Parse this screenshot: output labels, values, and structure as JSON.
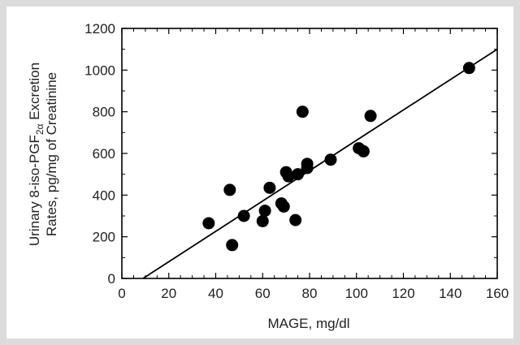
{
  "chart_data": {
    "type": "scatter",
    "xlabel": "MAGE, mg/dl",
    "ylabel_line1_parts": [
      "Urinary 8-iso-PGF",
      "2α",
      " Excretion"
    ],
    "ylabel_line2": "Rates, pg/mg of Creatinine",
    "xlim": [
      0,
      160
    ],
    "ylim": [
      0,
      1200
    ],
    "x_ticks": [
      0,
      20,
      40,
      60,
      80,
      100,
      120,
      140,
      160
    ],
    "y_ticks": [
      0,
      200,
      400,
      600,
      800,
      1000,
      1200
    ],
    "grid": false,
    "legend": "none",
    "points": [
      {
        "x": 37,
        "y": 265
      },
      {
        "x": 46,
        "y": 425
      },
      {
        "x": 47,
        "y": 160
      },
      {
        "x": 52,
        "y": 300
      },
      {
        "x": 60,
        "y": 275
      },
      {
        "x": 61,
        "y": 325
      },
      {
        "x": 63,
        "y": 435
      },
      {
        "x": 68,
        "y": 360
      },
      {
        "x": 69,
        "y": 345
      },
      {
        "x": 70,
        "y": 510
      },
      {
        "x": 71,
        "y": 490
      },
      {
        "x": 74,
        "y": 280
      },
      {
        "x": 75,
        "y": 500
      },
      {
        "x": 77,
        "y": 800
      },
      {
        "x": 79,
        "y": 530
      },
      {
        "x": 79,
        "y": 550
      },
      {
        "x": 89,
        "y": 570
      },
      {
        "x": 101,
        "y": 625
      },
      {
        "x": 103,
        "y": 610
      },
      {
        "x": 106,
        "y": 780
      },
      {
        "x": 148,
        "y": 1010
      }
    ],
    "regression_line": {
      "x1": 9,
      "y1": 0,
      "x2": 160,
      "y2": 1100
    },
    "marker_color": "#000000",
    "line_color": "#000000"
  }
}
